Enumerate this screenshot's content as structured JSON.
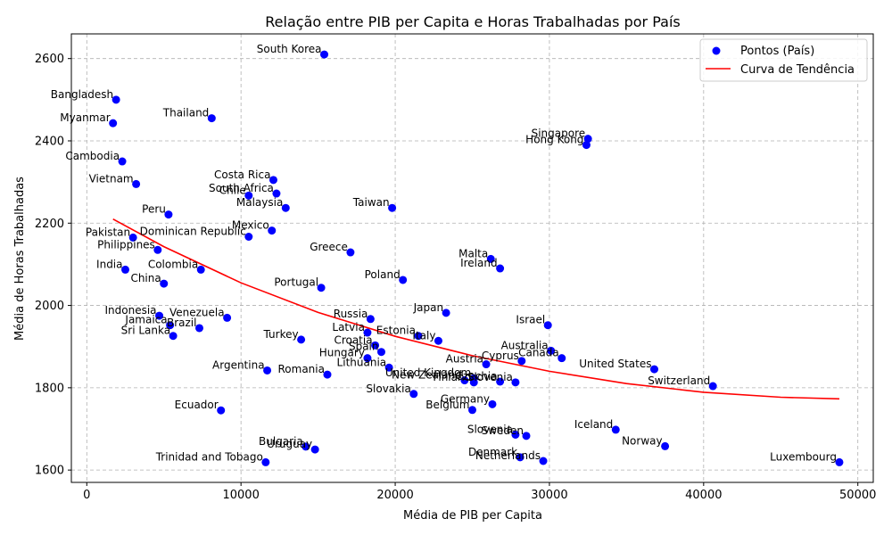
{
  "chart_data": {
    "type": "scatter",
    "title": "Relação entre PIB per Capita e Horas Trabalhadas por País",
    "xlabel": "Média de PIB per Capita",
    "ylabel": "Média de Horas Trabalhadas",
    "xlim": [
      -1000,
      51000
    ],
    "ylim": [
      1570,
      2660
    ],
    "xticks": [
      0,
      10000,
      20000,
      30000,
      40000,
      50000
    ],
    "yticks": [
      1600,
      1800,
      2000,
      2200,
      2400,
      2600
    ],
    "grid": true,
    "legend_position": "top-right",
    "legend": [
      {
        "label": "Pontos (País)",
        "color": "#0000ff",
        "kind": "marker"
      },
      {
        "label": "Curva de Tendência",
        "color": "#ff0000",
        "kind": "line"
      }
    ],
    "series": [
      {
        "kind": "scatter",
        "color": "#0000ff",
        "points": [
          {
            "label": "South Korea",
            "x": 15400,
            "y": 2610
          },
          {
            "label": "Bangladesh",
            "x": 1900,
            "y": 2500
          },
          {
            "label": "Thailand",
            "x": 8100,
            "y": 2455
          },
          {
            "label": "Myanmar",
            "x": 1700,
            "y": 2443
          },
          {
            "label": "Singapore",
            "x": 32500,
            "y": 2405
          },
          {
            "label": "Hong Kong",
            "x": 32400,
            "y": 2390
          },
          {
            "label": "Cambodia",
            "x": 2300,
            "y": 2350
          },
          {
            "label": "Costa Rica",
            "x": 12100,
            "y": 2305
          },
          {
            "label": "Vietnam",
            "x": 3200,
            "y": 2295
          },
          {
            "label": "South Africa",
            "x": 12300,
            "y": 2272
          },
          {
            "label": "Chile",
            "x": 10500,
            "y": 2267
          },
          {
            "label": "Malaysia",
            "x": 12900,
            "y": 2237
          },
          {
            "label": "Taiwan",
            "x": 19800,
            "y": 2237
          },
          {
            "label": "Peru",
            "x": 5300,
            "y": 2221
          },
          {
            "label": "Mexico",
            "x": 12000,
            "y": 2182
          },
          {
            "label": "Dominican Republic",
            "x": 10500,
            "y": 2167
          },
          {
            "label": "Pakistan",
            "x": 3000,
            "y": 2165
          },
          {
            "label": "Philippines",
            "x": 4600,
            "y": 2135
          },
          {
            "label": "Greece",
            "x": 17100,
            "y": 2129
          },
          {
            "label": "Malta",
            "x": 26200,
            "y": 2113
          },
          {
            "label": "Ireland",
            "x": 26800,
            "y": 2090
          },
          {
            "label": "India",
            "x": 2500,
            "y": 2087
          },
          {
            "label": "Colombia",
            "x": 7400,
            "y": 2087
          },
          {
            "label": "Poland",
            "x": 20500,
            "y": 2062
          },
          {
            "label": "China",
            "x": 5000,
            "y": 2053
          },
          {
            "label": "Portugal",
            "x": 15200,
            "y": 2043
          },
          {
            "label": "Japan",
            "x": 23300,
            "y": 1982
          },
          {
            "label": "Indonesia",
            "x": 4700,
            "y": 1975
          },
          {
            "label": "Venezuela",
            "x": 9100,
            "y": 1970
          },
          {
            "label": "Russia",
            "x": 18400,
            "y": 1967
          },
          {
            "label": "Jamaica",
            "x": 5400,
            "y": 1952
          },
          {
            "label": "Israel",
            "x": 29900,
            "y": 1952
          },
          {
            "label": "Brazil",
            "x": 7300,
            "y": 1945
          },
          {
            "label": "Latvia",
            "x": 18200,
            "y": 1934
          },
          {
            "label": "Sri Lanka",
            "x": 5600,
            "y": 1926
          },
          {
            "label": "Estonia",
            "x": 21500,
            "y": 1926
          },
          {
            "label": "Italy",
            "x": 22800,
            "y": 1914
          },
          {
            "label": "Turkey",
            "x": 13900,
            "y": 1917
          },
          {
            "label": "Croatia",
            "x": 18700,
            "y": 1903
          },
          {
            "label": "Australia",
            "x": 30100,
            "y": 1890
          },
          {
            "label": "Spain",
            "x": 19100,
            "y": 1887
          },
          {
            "label": "Canada",
            "x": 30800,
            "y": 1872
          },
          {
            "label": "Hungary",
            "x": 18200,
            "y": 1872
          },
          {
            "label": "Cyprus",
            "x": 28200,
            "y": 1865
          },
          {
            "label": "Austria",
            "x": 25900,
            "y": 1857
          },
          {
            "label": "Lithuania",
            "x": 19600,
            "y": 1849
          },
          {
            "label": "United States",
            "x": 36800,
            "y": 1845
          },
          {
            "label": "Argentina",
            "x": 11700,
            "y": 1842
          },
          {
            "label": "Romania",
            "x": 15600,
            "y": 1832
          },
          {
            "label": "United Kingdom",
            "x": 25100,
            "y": 1823
          },
          {
            "label": "New Zealand",
            "x": 24500,
            "y": 1818
          },
          {
            "label": "Finland",
            "x": 25100,
            "y": 1813
          },
          {
            "label": "Czechia",
            "x": 26800,
            "y": 1815
          },
          {
            "label": "Slovenia",
            "x": 27800,
            "y": 1813
          },
          {
            "label": "Switzerland",
            "x": 40600,
            "y": 1804
          },
          {
            "label": "Slovakia",
            "x": 21200,
            "y": 1785
          },
          {
            "label": "Germany",
            "x": 26300,
            "y": 1760
          },
          {
            "label": "Belgium",
            "x": 25000,
            "y": 1746
          },
          {
            "label": "Ecuador",
            "x": 8700,
            "y": 1745
          },
          {
            "label": "Iceland",
            "x": 34300,
            "y": 1698
          },
          {
            "label": "Slovenia",
            "x": 27800,
            "y": 1686
          },
          {
            "label": "Sweden",
            "x": 28500,
            "y": 1683
          },
          {
            "label": "Bulgaria",
            "x": 14200,
            "y": 1657
          },
          {
            "label": "Uruguay",
            "x": 14800,
            "y": 1650
          },
          {
            "label": "Norway",
            "x": 37500,
            "y": 1658
          },
          {
            "label": "Denmark",
            "x": 28100,
            "y": 1631
          },
          {
            "label": "Netherlands",
            "x": 29600,
            "y": 1622
          },
          {
            "label": "Trinidad and Tobago",
            "x": 11600,
            "y": 1619
          },
          {
            "label": "Luxembourg",
            "x": 48800,
            "y": 1619
          }
        ]
      },
      {
        "kind": "line",
        "color": "#ff0000",
        "x": [
          1700,
          5000,
          10000,
          15000,
          20000,
          25000,
          30000,
          35000,
          40000,
          45000,
          48800
        ],
        "y": [
          2210,
          2143,
          2055,
          1983,
          1925,
          1878,
          1840,
          1810,
          1789,
          1777,
          1773
        ]
      }
    ]
  }
}
